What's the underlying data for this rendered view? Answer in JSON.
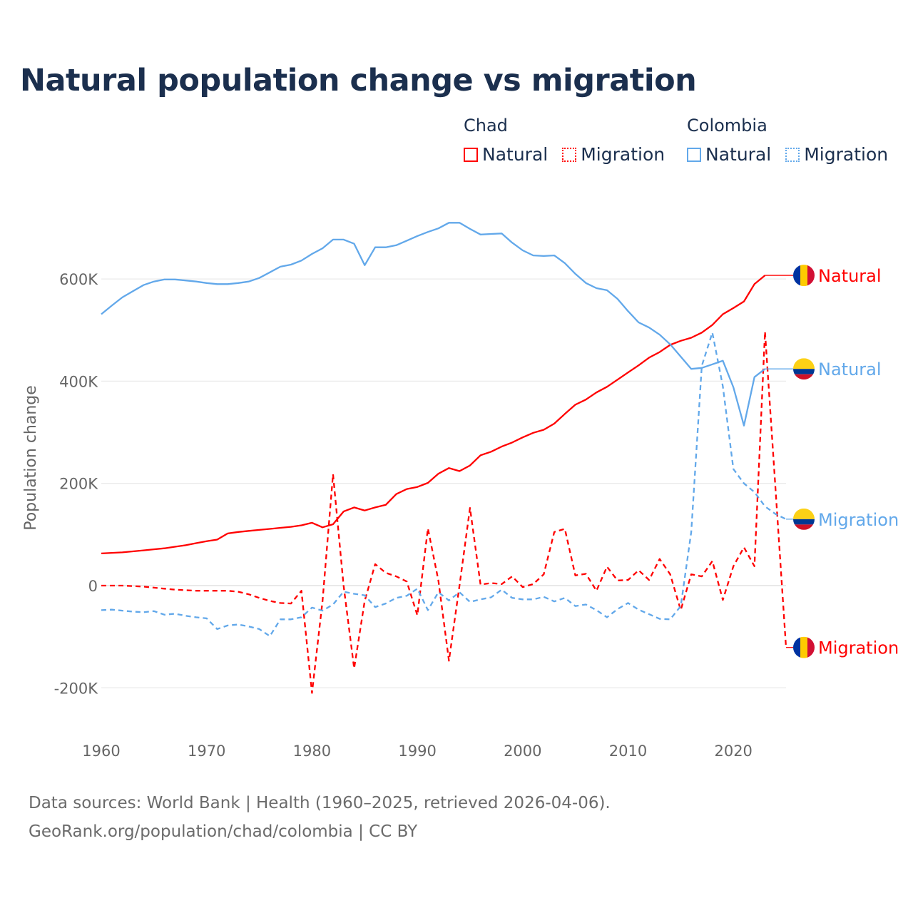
{
  "title": "Natural population change vs migration",
  "legend": {
    "groups": [
      {
        "name": "Chad",
        "items": [
          {
            "label": "Natural",
            "style": "solid"
          },
          {
            "label": "Migration",
            "style": "dotted"
          }
        ],
        "color": "#ff0000"
      },
      {
        "name": "Colombia",
        "items": [
          {
            "label": "Natural",
            "style": "solid"
          },
          {
            "label": "Migration",
            "style": "dotted"
          }
        ],
        "color": "#62a8ea"
      }
    ]
  },
  "footer": {
    "line1": "Data sources: World Bank | Health (1960–2025, retrieved 2026-04-06).",
    "line2": "GeoRank.org/population/chad/colombia | CC BY"
  },
  "chart_data": {
    "type": "line",
    "title": "Natural population change vs migration",
    "xlabel": "",
    "ylabel": "Population change",
    "xlim": [
      1960,
      2025
    ],
    "ylim": [
      -250000,
      720000
    ],
    "xticks": [
      1960,
      1970,
      1980,
      1990,
      2000,
      2010,
      2020
    ],
    "yticks": [
      -200000,
      0,
      200000,
      400000,
      600000
    ],
    "ytick_labels": [
      "-200K",
      "0",
      "200K",
      "400K",
      "600K"
    ],
    "grid": true,
    "legend_position": "top-right",
    "series": [
      {
        "name": "Chad Natural",
        "country": "Chad",
        "end_label": "Natural",
        "color": "#ff0000",
        "dash": false,
        "flag": "chad",
        "x_start": 1960,
        "values": [
          63000,
          64000,
          65000,
          67000,
          69000,
          71000,
          73000,
          76000,
          79000,
          83000,
          87000,
          90000,
          102000,
          105000,
          107000,
          109000,
          111000,
          113000,
          115000,
          118000,
          123000,
          114000,
          120000,
          145000,
          153000,
          147000,
          153000,
          158000,
          179000,
          189000,
          193000,
          201000,
          219000,
          230000,
          224000,
          235000,
          255000,
          262000,
          272000,
          280000,
          290000,
          299000,
          305000,
          317000,
          336000,
          354000,
          364000,
          378000,
          389000,
          403000,
          417000,
          431000,
          446000,
          457000,
          471000,
          479000,
          485000,
          495000,
          510000,
          531000,
          543000,
          556000,
          590000,
          607000
        ]
      },
      {
        "name": "Chad Migration",
        "country": "Chad",
        "end_label": "Migration",
        "color": "#ff0000",
        "dash": true,
        "flag": "chad",
        "x_start": 1960,
        "values": [
          0,
          0,
          0,
          -1000,
          -2000,
          -4000,
          -6000,
          -8000,
          -9000,
          -10000,
          -10000,
          -10000,
          -10000,
          -12000,
          -17000,
          -24000,
          -30000,
          -34000,
          -35000,
          -10000,
          -210000,
          -30000,
          218000,
          0,
          -162000,
          -30000,
          42000,
          25000,
          18000,
          8000,
          -58000,
          112000,
          10000,
          -147000,
          0,
          152000,
          2000,
          5000,
          3000,
          18000,
          -3000,
          3000,
          22000,
          105000,
          111000,
          20000,
          23000,
          -10000,
          37000,
          10000,
          11000,
          30000,
          11000,
          52000,
          22000,
          -48000,
          22000,
          18000,
          48000,
          -28000,
          38000,
          75000,
          38000,
          497000,
          188000,
          -121000
        ]
      },
      {
        "name": "Colombia Natural",
        "country": "Colombia",
        "end_label": "Natural",
        "color": "#62a8ea",
        "dash": false,
        "flag": "colombia",
        "x_start": 1960,
        "values": [
          531000,
          548000,
          564000,
          576000,
          588000,
          595000,
          599000,
          599000,
          597000,
          595000,
          592000,
          590000,
          590000,
          592000,
          595000,
          602000,
          613000,
          624000,
          628000,
          636000,
          649000,
          660000,
          677000,
          677000,
          669000,
          627000,
          662000,
          662000,
          666000,
          675000,
          684000,
          692000,
          699000,
          710000,
          710000,
          698000,
          687000,
          688000,
          689000,
          671000,
          656000,
          646000,
          645000,
          646000,
          631000,
          610000,
          592000,
          582000,
          578000,
          561000,
          537000,
          515000,
          505000,
          491000,
          472000,
          448000,
          424000,
          426000,
          433000,
          440000,
          388000,
          313000,
          408000,
          424000
        ]
      },
      {
        "name": "Colombia Migration",
        "country": "Colombia",
        "end_label": "Migration",
        "color": "#62a8ea",
        "dash": true,
        "flag": "colombia",
        "x_start": 1960,
        "values": [
          -48000,
          -47000,
          -49000,
          -51000,
          -52000,
          -50000,
          -57000,
          -55000,
          -59000,
          -62000,
          -64000,
          -85000,
          -78000,
          -76000,
          -80000,
          -85000,
          -99000,
          -66000,
          -66000,
          -62000,
          -43000,
          -49000,
          -37000,
          -12000,
          -16000,
          -19000,
          -42000,
          -35000,
          -24000,
          -20000,
          -6000,
          -48000,
          -13000,
          -29000,
          -13000,
          -32000,
          -27000,
          -23000,
          -8000,
          -24000,
          -27000,
          -27000,
          -22000,
          -31000,
          -24000,
          -40000,
          -37000,
          -48000,
          -62000,
          -46000,
          -34000,
          -47000,
          -56000,
          -65000,
          -66000,
          -40000,
          105000,
          430000,
          495000,
          390000,
          228000,
          200000,
          183000,
          155000,
          140000,
          130000
        ]
      }
    ]
  }
}
